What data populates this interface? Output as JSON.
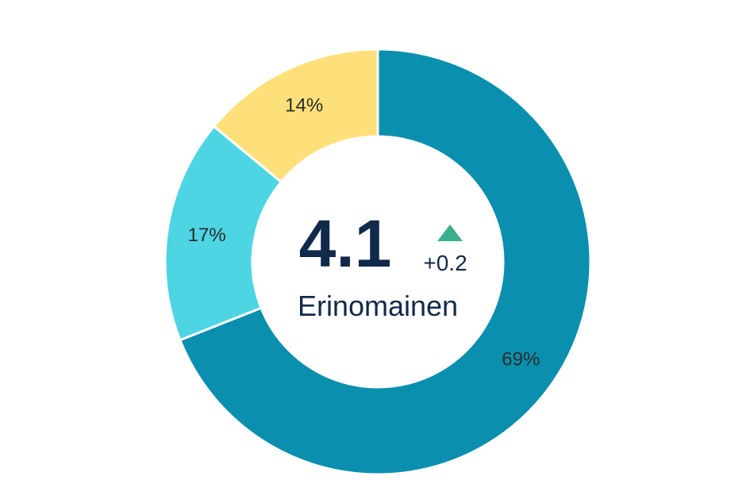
{
  "chart_data": {
    "type": "pie",
    "variant": "donut",
    "slices": [
      {
        "value": 69,
        "label": "69%",
        "color": "#0a8fae"
      },
      {
        "value": 17,
        "label": "17%",
        "color": "#4dd5e3"
      },
      {
        "value": 14,
        "label": "14%",
        "color": "#fde07a"
      }
    ],
    "start_angle_deg": 0,
    "direction": "clockwise"
  },
  "center": {
    "value": "4.1",
    "delta": "+0.2",
    "delta_direction": "up",
    "delta_color": "#3aaf8e",
    "caption": "Erinomainen"
  }
}
